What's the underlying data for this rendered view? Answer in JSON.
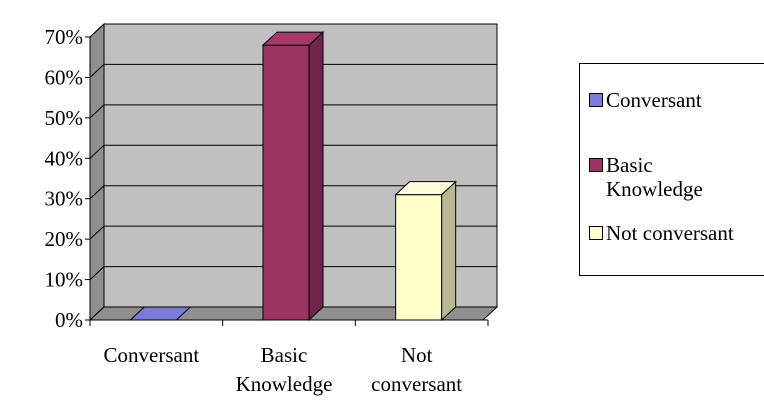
{
  "chart_data": {
    "type": "bar",
    "style": "3d-column",
    "categories": [
      {
        "label": "Conversant",
        "line1": "Conversant",
        "line2": ""
      },
      {
        "label": "Basic Knowledge",
        "line1": "Basic",
        "line2": "Knowledge"
      },
      {
        "label": "Not conversant",
        "line1": "Not",
        "line2": "conversant"
      }
    ],
    "values": [
      0,
      68,
      31
    ],
    "colors": [
      "#7b7bd9",
      "#9a3462",
      "#ffffc8"
    ],
    "y_ticks": [
      "0%",
      "10%",
      "20%",
      "30%",
      "40%",
      "50%",
      "60%",
      "70%"
    ],
    "ylim": [
      0,
      70
    ],
    "grid": true,
    "legend_position": "right",
    "legend": [
      {
        "label": "Conversant",
        "color": "#7b7bd9"
      },
      {
        "label": "Basic\nKnowledge",
        "color": "#9a3462"
      },
      {
        "label": "Not conversant",
        "color": "#ffffc8"
      }
    ]
  }
}
